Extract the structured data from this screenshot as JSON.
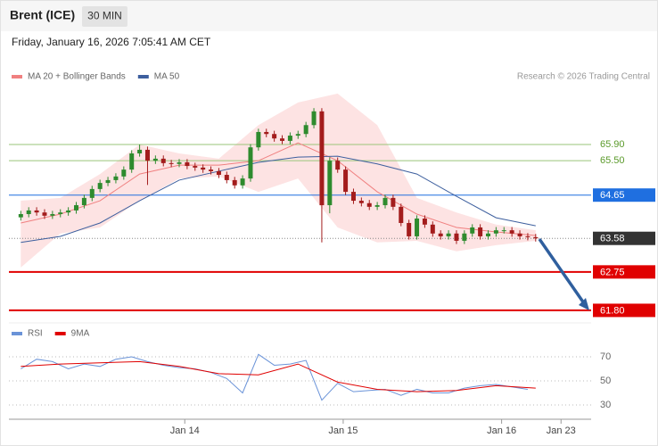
{
  "header": {
    "title": "Brent (ICE)",
    "timeframe": "30 MIN",
    "timestamp": "Friday, January 16, 2026 7:05:41 AM CET",
    "credit": "Research © 2026 Trading Central"
  },
  "chart_data": [
    {
      "type": "candlestick",
      "up_color": "#2e8b2e",
      "down_color": "#a31c1c",
      "xlim": [
        -1.5,
        72
      ],
      "ylim": [
        61.6,
        67.4
      ],
      "open": [
        64.1,
        64.18,
        64.27,
        64.22,
        64.14,
        64.18,
        64.22,
        64.27,
        64.4,
        64.58,
        64.8,
        64.95,
        65.02,
        65.11,
        65.28,
        65.68,
        65.77,
        65.5,
        65.55,
        65.44,
        65.42,
        65.46,
        65.37,
        65.33,
        65.28,
        65.24,
        65.15,
        65.02,
        64.89,
        65.06,
        65.83,
        66.21,
        66.16,
        66.05,
        65.99,
        66.12,
        66.16,
        66.38,
        66.72,
        64.4,
        65.5,
        65.28,
        64.73,
        64.51,
        64.45,
        64.36,
        64.4,
        64.58,
        64.36,
        63.96,
        63.63,
        64.07,
        63.92,
        63.7,
        63.63,
        63.7,
        63.52,
        63.7,
        63.85,
        63.63,
        63.7,
        63.78,
        63.78,
        63.7,
        63.63,
        63.61
      ],
      "high": [
        64.26,
        64.35,
        64.35,
        64.3,
        64.26,
        64.3,
        64.35,
        64.48,
        64.66,
        64.88,
        65.03,
        65.1,
        65.19,
        65.36,
        65.76,
        65.9,
        65.85,
        65.63,
        65.63,
        65.52,
        65.54,
        65.54,
        65.45,
        65.41,
        65.36,
        65.32,
        65.23,
        65.1,
        65.14,
        65.91,
        66.29,
        66.29,
        66.24,
        66.13,
        66.2,
        66.24,
        66.46,
        66.8,
        66.8,
        65.58,
        65.58,
        65.36,
        64.81,
        64.59,
        64.53,
        64.48,
        64.66,
        64.66,
        64.44,
        64.04,
        64.15,
        64.15,
        64.0,
        63.78,
        63.78,
        63.78,
        63.78,
        63.93,
        63.93,
        63.78,
        63.86,
        63.86,
        63.86,
        63.78,
        63.71,
        63.69
      ],
      "low": [
        64.02,
        64.1,
        64.14,
        64.06,
        64.06,
        64.1,
        64.14,
        64.19,
        64.32,
        64.5,
        64.72,
        64.87,
        64.94,
        65.03,
        65.2,
        65.6,
        64.9,
        65.42,
        65.36,
        65.34,
        65.34,
        65.29,
        65.25,
        65.2,
        65.16,
        65.07,
        64.94,
        64.81,
        64.81,
        64.98,
        65.75,
        66.08,
        65.97,
        65.91,
        65.91,
        66.04,
        66.08,
        66.3,
        63.48,
        64.2,
        65.2,
        64.65,
        64.43,
        64.37,
        64.28,
        64.28,
        64.32,
        64.28,
        63.88,
        63.55,
        63.55,
        63.84,
        63.62,
        63.55,
        63.55,
        63.44,
        63.44,
        63.62,
        63.55,
        63.55,
        63.62,
        63.7,
        63.62,
        63.55,
        63.53,
        63.5
      ],
      "close": [
        64.18,
        64.27,
        64.22,
        64.14,
        64.18,
        64.22,
        64.27,
        64.4,
        64.58,
        64.8,
        64.95,
        65.02,
        65.11,
        65.28,
        65.68,
        65.77,
        65.5,
        65.55,
        65.44,
        65.42,
        65.46,
        65.37,
        65.33,
        65.28,
        65.24,
        65.15,
        65.02,
        64.89,
        65.06,
        65.83,
        66.21,
        66.16,
        66.05,
        65.99,
        66.12,
        66.16,
        66.38,
        66.72,
        64.4,
        65.5,
        65.28,
        64.73,
        64.51,
        64.45,
        64.36,
        64.4,
        64.58,
        64.36,
        63.96,
        63.63,
        64.07,
        63.92,
        63.7,
        63.63,
        63.7,
        63.52,
        63.7,
        63.85,
        63.63,
        63.7,
        63.78,
        63.78,
        63.7,
        63.63,
        63.61,
        63.58
      ],
      "series": [
        {
          "name": "MA 20 + Bollinger Bands",
          "color": "#f08080",
          "band_color": "#fde3e3",
          "x": [
            0,
            5,
            10,
            15,
            20,
            25,
            30,
            35,
            40,
            45,
            50,
            55,
            60,
            65
          ],
          "values": [
            63.96,
            64.18,
            64.51,
            65.17,
            65.39,
            65.39,
            65.5,
            65.94,
            65.5,
            64.73,
            64.18,
            63.85,
            63.74,
            63.65
          ],
          "upper": [
            64.51,
            64.58,
            65.17,
            65.9,
            65.68,
            65.55,
            66.38,
            66.94,
            67.16,
            66.38,
            64.58,
            64.22,
            63.92,
            63.78
          ],
          "lower": [
            62.86,
            63.7,
            63.85,
            64.51,
            65.06,
            65.11,
            64.73,
            65.06,
            63.85,
            63.48,
            63.52,
            63.26,
            63.41,
            63.52
          ]
        },
        {
          "name": "MA 50",
          "color": "#3d5f9e",
          "x": [
            0,
            5,
            10,
            15,
            20,
            25,
            30,
            35,
            40,
            45,
            50,
            55,
            60,
            65
          ],
          "values": [
            63.48,
            63.63,
            63.96,
            64.51,
            65.02,
            65.24,
            65.46,
            65.59,
            65.61,
            65.42,
            65.17,
            64.62,
            64.09,
            63.89
          ]
        }
      ],
      "levels": [
        {
          "value": 65.9,
          "label": "65.90",
          "color": "#9ac47a",
          "text_color": "#5a9a2a",
          "style": "thin",
          "boxed": false
        },
        {
          "value": 65.5,
          "label": "65.50",
          "color": "#9ac47a",
          "text_color": "#5a9a2a",
          "style": "thin",
          "boxed": false
        },
        {
          "value": 64.65,
          "label": "64.65",
          "color": "#1f6fe0",
          "text_color": "#ffffff",
          "style": "solid",
          "boxed": true
        },
        {
          "value": 63.58,
          "label": "63.58",
          "color": "#333333",
          "text_color": "#ffffff",
          "style": "dotted",
          "boxed": true
        },
        {
          "value": 62.75,
          "label": "62.75",
          "color": "#e00000",
          "text_color": "#ffffff",
          "style": "thick",
          "boxed": true
        },
        {
          "value": 61.8,
          "label": "61.80",
          "color": "#e00000",
          "text_color": "#ffffff",
          "style": "thick",
          "boxed": true
        }
      ]
    },
    {
      "type": "line",
      "xlim": [
        -1.5,
        72
      ],
      "ylim": [
        25,
        80
      ],
      "yticks": [
        70,
        50,
        30
      ],
      "xticks": [
        {
          "value": 20.7,
          "label": "Jan 14"
        },
        {
          "value": 40.7,
          "label": "Jan 15"
        },
        {
          "value": 60.7,
          "label": "Jan 16"
        },
        {
          "value": 68.2,
          "label": "Jan 23"
        }
      ],
      "series": [
        {
          "name": "RSI",
          "color": "#6a93d8",
          "x": [
            0,
            2,
            4,
            6,
            8,
            10,
            12,
            14,
            16,
            18,
            20,
            22,
            24,
            26,
            28,
            30,
            32,
            34,
            36,
            38,
            40,
            42,
            44,
            46,
            48,
            50,
            52,
            54,
            56,
            58,
            60,
            62,
            64
          ],
          "values": [
            60,
            68,
            66,
            60,
            64,
            62,
            68,
            70,
            66,
            63,
            61,
            60,
            57,
            52,
            40,
            72,
            63,
            64,
            67,
            34,
            48,
            41,
            42,
            43,
            38,
            43,
            40,
            40,
            44,
            46,
            47,
            45,
            43
          ]
        },
        {
          "name": "9MA",
          "color": "#e00000",
          "x": [
            0,
            5,
            10,
            15,
            20,
            25,
            30,
            35,
            40,
            45,
            50,
            55,
            60,
            65
          ],
          "values": [
            62,
            64,
            65,
            66,
            62,
            56,
            55,
            64,
            49,
            43,
            41,
            42,
            46,
            44
          ]
        }
      ]
    }
  ]
}
